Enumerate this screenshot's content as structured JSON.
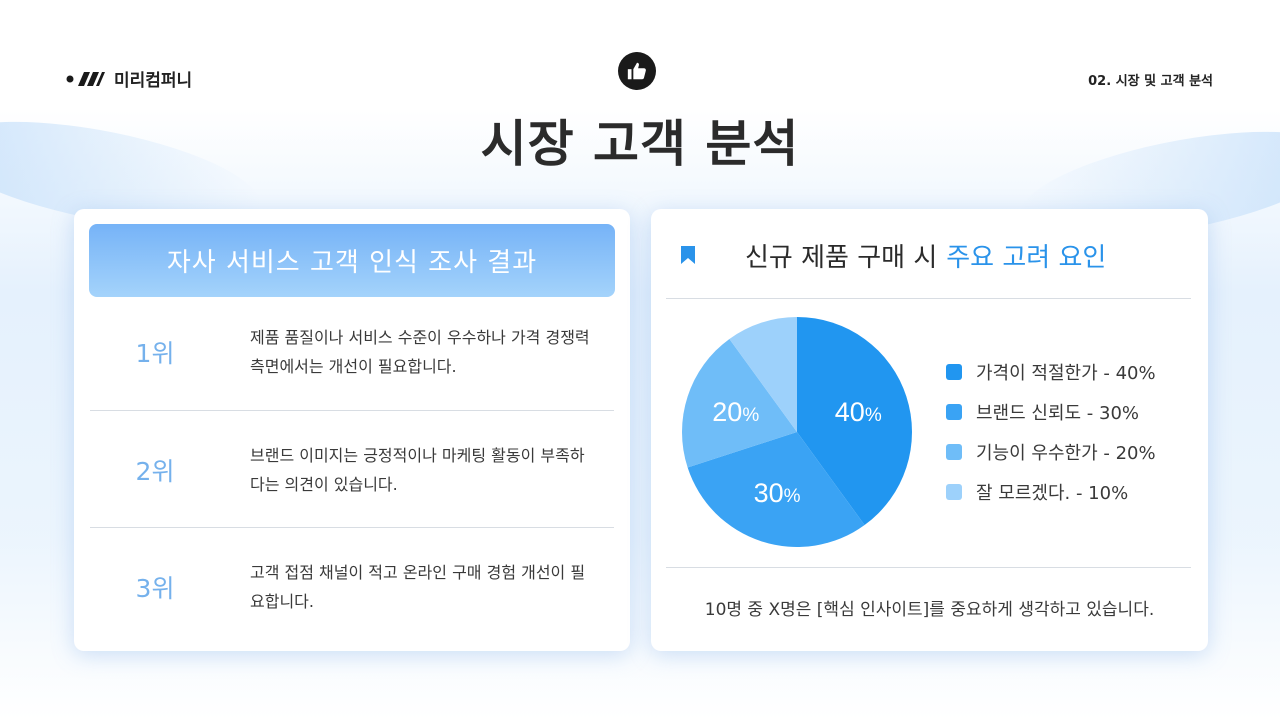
{
  "header": {
    "logo_text": "미리컴퍼니",
    "breadcrumb": "02. 시장 및 고객 분석",
    "title": "시장 고객 분석"
  },
  "left_card": {
    "title": "자사 서비스 고객 인식 조사 결과",
    "ranks": [
      {
        "rank": "1위",
        "text": "제품 품질이나 서비스 수준이 우수하나 가격 경쟁력 측면에서는 개선이 필요합니다."
      },
      {
        "rank": "2위",
        "text": "브랜드 이미지는 긍정적이나 마케팅 활동이 부족하다는 의견이 있습니다."
      },
      {
        "rank": "3위",
        "text": "고객 접점 채널이 적고 온라인 구매 경험 개선이 필요합니다."
      }
    ]
  },
  "right_card": {
    "title_main": "신규 제품 구매 시",
    "title_accent": "주요 고려 요인",
    "insight": "10명 중 X명은 [핵심 인사이트]를 중요하게 생각하고 있습니다."
  },
  "colors": {
    "accent": "#2a93ea",
    "slice1": "#2196f0",
    "slice2": "#3aa3f4",
    "slice3": "#6fbdf8",
    "slice4": "#9dd1fb"
  },
  "chart_data": {
    "type": "pie",
    "categories": [
      "가격이 적절한가",
      "브랜드 신뢰도",
      "기능이 우수한가",
      "잘 모르겠다."
    ],
    "values": [
      40,
      30,
      20,
      10
    ],
    "legend": [
      "가격이 적절한가 - 40%",
      "브랜드 신뢰도 - 30%",
      "기능이 우수한가 - 20%",
      "잘 모르겠다. - 10%"
    ],
    "data_labels": [
      "40",
      "30",
      "20",
      ""
    ],
    "unit": "%",
    "legend_position": "right"
  }
}
